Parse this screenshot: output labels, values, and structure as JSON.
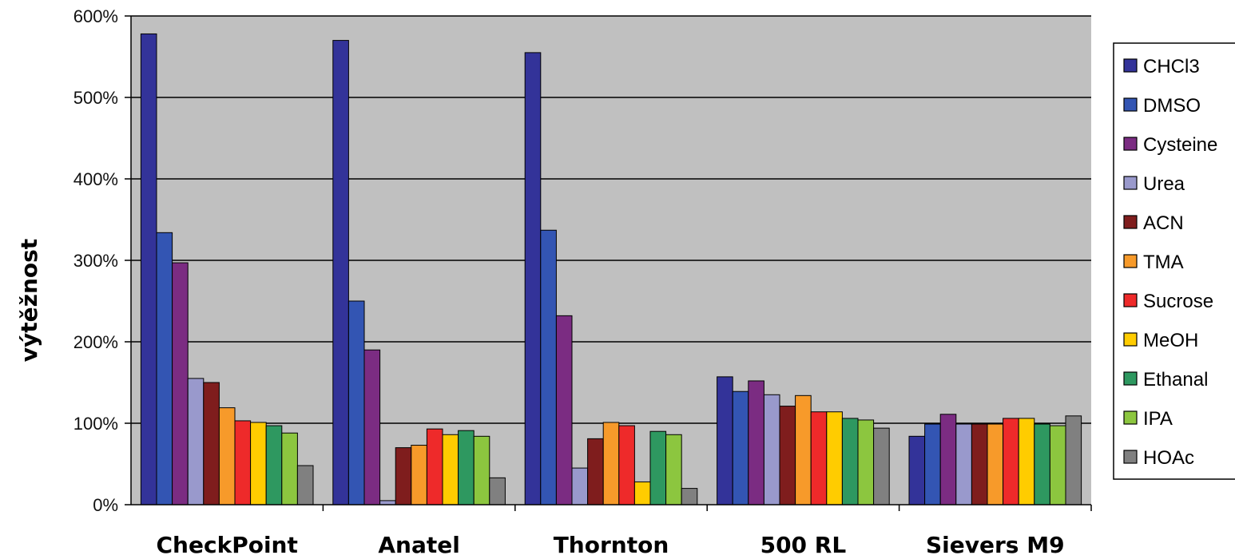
{
  "chart_data": {
    "type": "bar",
    "ylabel": "výtěžnost",
    "xlabel": "",
    "categories": [
      "CheckPoint",
      "Anatel",
      "Thornton",
      "500 RL",
      "Sievers M9"
    ],
    "ylim": [
      0,
      600
    ],
    "yticks": [
      0,
      100,
      200,
      300,
      400,
      500,
      600
    ],
    "ytick_labels": [
      "0%",
      "100%",
      "200%",
      "300%",
      "400%",
      "500%",
      "600%"
    ],
    "grid": true,
    "legend_position": "right",
    "plot_background": "#c0c0c0",
    "series": [
      {
        "name": "CHCl3",
        "color": "#333399",
        "values": [
          578,
          570,
          555,
          157,
          84
        ]
      },
      {
        "name": "DMSO",
        "color": "#3355b3",
        "values": [
          334,
          250,
          337,
          139,
          99
        ]
      },
      {
        "name": "Cysteine",
        "color": "#7b2c82",
        "values": [
          297,
          190,
          232,
          152,
          111
        ]
      },
      {
        "name": "Urea",
        "color": "#9999cc",
        "values": [
          155,
          5,
          45,
          135,
          99
        ]
      },
      {
        "name": "ACN",
        "color": "#7f1d1d",
        "values": [
          150,
          70,
          81,
          121,
          99
        ]
      },
      {
        "name": "TMA",
        "color": "#f79a2a",
        "values": [
          119,
          73,
          101,
          134,
          99
        ]
      },
      {
        "name": "Sucrose",
        "color": "#ee2a2a",
        "values": [
          103,
          93,
          97,
          114,
          106
        ]
      },
      {
        "name": "MeOH",
        "color": "#ffcc00",
        "values": [
          101,
          86,
          28,
          114,
          106
        ]
      },
      {
        "name": "Ethanal",
        "color": "#2e9860",
        "values": [
          97,
          91,
          90,
          106,
          99
        ]
      },
      {
        "name": "IPA",
        "color": "#8cc63f",
        "values": [
          88,
          84,
          86,
          104,
          97
        ]
      },
      {
        "name": "HOAc",
        "color": "#808080",
        "values": [
          48,
          33,
          20,
          94,
          109
        ]
      }
    ]
  }
}
